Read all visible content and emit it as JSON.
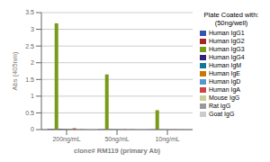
{
  "chart_data": {
    "type": "bar",
    "title": "Plate Coated with:\n(50ng/well)",
    "xlabel": "clone# RM119 (primary Ab)",
    "ylabel": "Abs (405nm)",
    "categories": [
      "200ng/mL",
      "50ng/mL",
      "10ng/mL"
    ],
    "series": [
      {
        "name": "Human IgG1",
        "color": "#3355aa",
        "values": [
          0.02,
          0.01,
          0.005
        ]
      },
      {
        "name": "Human IgG2",
        "color": "#aa2222",
        "values": [
          0.02,
          0.01,
          0.005
        ]
      },
      {
        "name": "Human IgG3",
        "color": "#7a9a1a",
        "values": [
          3.18,
          1.65,
          0.58
        ]
      },
      {
        "name": "Human IgG4",
        "color": "#332277",
        "values": [
          0.02,
          0.01,
          0.005
        ]
      },
      {
        "name": "Human IgM",
        "color": "#117799",
        "values": [
          0.02,
          0.01,
          0.005
        ]
      },
      {
        "name": "Human IgE",
        "color": "#cc7700",
        "values": [
          0.02,
          0.01,
          0.005
        ]
      },
      {
        "name": "Human IgD",
        "color": "#5599cc",
        "values": [
          0.02,
          0.01,
          0.005
        ]
      },
      {
        "name": "Human IgA",
        "color": "#cc4444",
        "values": [
          0.04,
          0.01,
          0.005
        ]
      },
      {
        "name": "Mouse IgG",
        "color": "#cccc99",
        "values": [
          0.02,
          0.01,
          0.005
        ]
      },
      {
        "name": "Rat IgG",
        "color": "#999999",
        "values": [
          0.02,
          0.01,
          0.005
        ]
      },
      {
        "name": "Goat IgG",
        "color": "#cccccc",
        "values": [
          0.02,
          0.01,
          0.005
        ]
      }
    ],
    "ylim": [
      0,
      3.5
    ],
    "yticks": [
      0,
      0.5,
      1,
      1.5,
      2,
      2.5,
      3,
      3.5
    ],
    "grid": true,
    "legend": "right"
  }
}
